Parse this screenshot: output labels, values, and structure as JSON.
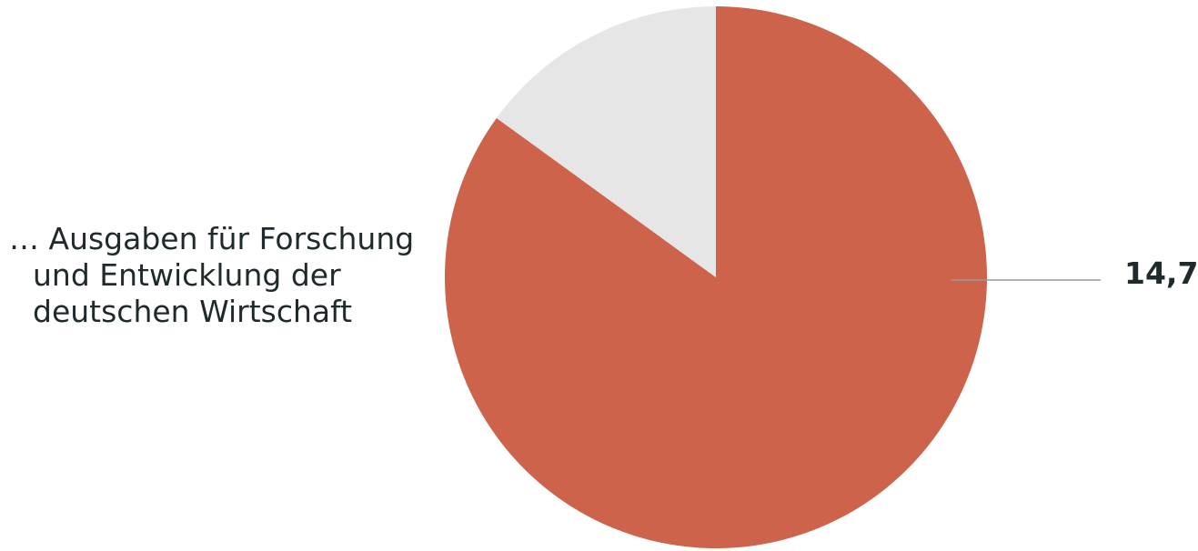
{
  "chart_data": {
    "type": "pie",
    "category_label": [
      "… Ausgaben für Forschung",
      "und Entwicklung der",
      "deutschen Wirtschaft"
    ],
    "slices": [
      {
        "value": 14.7,
        "share": 0.85,
        "color": "#cd634b",
        "value_label": "14,7"
      },
      {
        "share": 0.15,
        "color": "#e6e6e6"
      }
    ],
    "start_angle": "top",
    "direction": "clockwise"
  }
}
